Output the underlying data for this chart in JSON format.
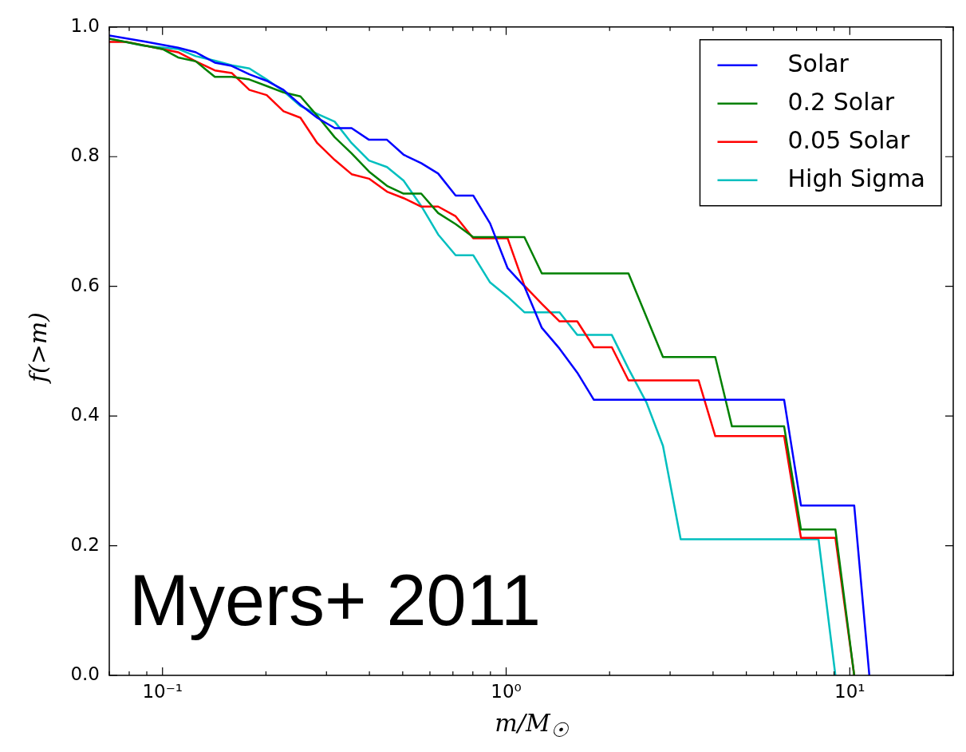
{
  "chart_data": {
    "type": "line",
    "xlabel": "m/M$_{☉}$",
    "ylabel": "f(>m)",
    "log": "x",
    "xlim": [
      0.07,
      20
    ],
    "ylim": [
      0,
      1
    ],
    "xticks": [
      {
        "value": 0.07,
        "label": null
      },
      {
        "value": 0.08,
        "label": null
      },
      {
        "value": 0.09,
        "label": null
      },
      {
        "value": 0.1,
        "label": "10⁻¹"
      },
      {
        "value": 0.2,
        "label": null
      },
      {
        "value": 0.3,
        "label": null
      },
      {
        "value": 0.4,
        "label": null
      },
      {
        "value": 0.5,
        "label": null
      },
      {
        "value": 0.6,
        "label": null
      },
      {
        "value": 0.7,
        "label": null
      },
      {
        "value": 0.8,
        "label": null
      },
      {
        "value": 0.9,
        "label": null
      },
      {
        "value": 1,
        "label": "10⁰"
      },
      {
        "value": 2,
        "label": null
      },
      {
        "value": 3,
        "label": null
      },
      {
        "value": 4,
        "label": null
      },
      {
        "value": 5,
        "label": null
      },
      {
        "value": 6,
        "label": null
      },
      {
        "value": 7,
        "label": null
      },
      {
        "value": 8,
        "label": null
      },
      {
        "value": 9,
        "label": null
      },
      {
        "value": 10,
        "label": "10¹"
      },
      {
        "value": 20,
        "label": null
      }
    ],
    "yticks": [
      {
        "value": 0,
        "label": "0.0"
      },
      0.2,
      0.4,
      0.6,
      0.8,
      {
        "value": 1,
        "label": "1.0"
      }
    ],
    "legend": "top right",
    "annotations": [
      "Myers+ 2011"
    ],
    "series": [
      {
        "name": "Solar",
        "color": "#0000ff",
        "x": [
          0.07,
          0.088,
          0.111,
          0.125,
          0.142,
          0.159,
          0.179,
          0.201,
          0.225,
          0.252,
          0.282,
          0.317,
          0.355,
          0.399,
          0.45,
          0.503,
          0.566,
          0.634,
          0.713,
          0.802,
          0.898,
          1.01,
          1.13,
          1.27,
          1.43,
          1.61,
          1.8,
          6.44,
          7.21,
          10.3,
          11.4
        ],
        "values": [
          0.987,
          0.978,
          0.968,
          0.961,
          0.945,
          0.94,
          0.927,
          0.917,
          0.903,
          0.88,
          0.86,
          0.844,
          0.844,
          0.826,
          0.826,
          0.803,
          0.79,
          0.774,
          0.74,
          0.74,
          0.697,
          0.628,
          0.6,
          0.536,
          0.504,
          0.467,
          0.425,
          0.425,
          0.262,
          0.262,
          0
        ]
      },
      {
        "name": "0.2 Solar",
        "color": "#008000",
        "x": [
          0.07,
          0.1,
          0.111,
          0.125,
          0.142,
          0.159,
          0.179,
          0.201,
          0.225,
          0.252,
          0.282,
          0.317,
          0.355,
          0.399,
          0.45,
          0.503,
          0.566,
          0.634,
          0.713,
          0.802,
          1.13,
          1.27,
          2.27,
          2.86,
          4.06,
          4.54,
          6.44,
          7.21,
          9.08,
          10.3
        ],
        "values": [
          0.982,
          0.966,
          0.953,
          0.947,
          0.923,
          0.923,
          0.919,
          0.909,
          0.899,
          0.893,
          0.863,
          0.83,
          0.805,
          0.777,
          0.755,
          0.743,
          0.743,
          0.713,
          0.696,
          0.676,
          0.676,
          0.62,
          0.62,
          0.491,
          0.491,
          0.384,
          0.384,
          0.225,
          0.225,
          0
        ]
      },
      {
        "name": "0.05 Solar",
        "color": "#ff0000",
        "x": [
          0.07,
          0.0785,
          0.1,
          0.111,
          0.125,
          0.142,
          0.159,
          0.179,
          0.201,
          0.225,
          0.252,
          0.282,
          0.317,
          0.355,
          0.399,
          0.45,
          0.503,
          0.566,
          0.634,
          0.713,
          0.802,
          1.01,
          1.13,
          1.27,
          1.43,
          1.61,
          1.8,
          2.03,
          2.27,
          3.63,
          4.06,
          6.44,
          7.21,
          9.08,
          10.3
        ],
        "values": [
          0.977,
          0.977,
          0.966,
          0.961,
          0.947,
          0.933,
          0.929,
          0.903,
          0.895,
          0.87,
          0.86,
          0.821,
          0.795,
          0.773,
          0.766,
          0.746,
          0.736,
          0.723,
          0.723,
          0.708,
          0.674,
          0.674,
          0.601,
          0.573,
          0.546,
          0.546,
          0.506,
          0.506,
          0.455,
          0.455,
          0.369,
          0.369,
          0.212,
          0.212,
          0
        ]
      },
      {
        "name": "High Sigma",
        "color": "#00bfbf",
        "x": [
          0.07,
          0.088,
          0.111,
          0.125,
          0.142,
          0.159,
          0.179,
          0.201,
          0.225,
          0.252,
          0.282,
          0.317,
          0.355,
          0.399,
          0.45,
          0.503,
          0.566,
          0.634,
          0.713,
          0.802,
          0.898,
          1.01,
          1.13,
          1.43,
          1.61,
          2.03,
          2.27,
          2.56,
          2.86,
          3.22,
          8.11,
          9.08
        ],
        "values": [
          0.982,
          0.971,
          0.966,
          0.955,
          0.948,
          0.941,
          0.936,
          0.919,
          0.901,
          0.878,
          0.866,
          0.854,
          0.821,
          0.794,
          0.784,
          0.763,
          0.724,
          0.68,
          0.648,
          0.648,
          0.606,
          0.584,
          0.56,
          0.56,
          0.525,
          0.525,
          0.473,
          0.421,
          0.354,
          0.21,
          0.21,
          0
        ]
      }
    ]
  }
}
